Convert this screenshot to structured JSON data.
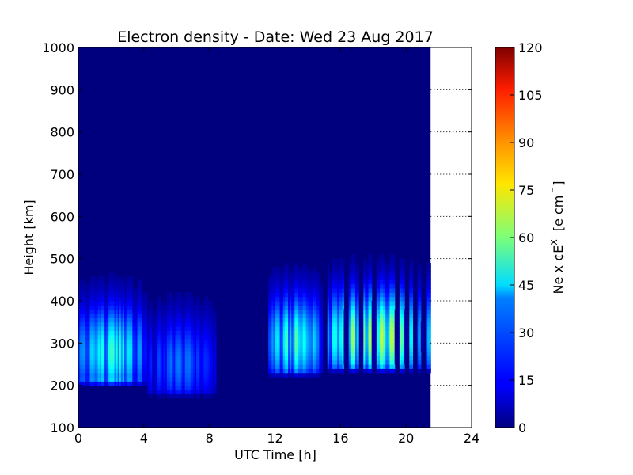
{
  "chart_data": {
    "type": "heatmap",
    "title": "Electron density - Date: Wed 23 Aug 2017",
    "xlabel": "UTC Time [h]",
    "ylabel": "Height [km]",
    "xlim": [
      0,
      24
    ],
    "ylim": [
      100,
      1000
    ],
    "x_ticks": [
      "0",
      "4",
      "8",
      "12",
      "16",
      "20",
      "24"
    ],
    "y_ticks": [
      "100",
      "200",
      "300",
      "400",
      "500",
      "600",
      "700",
      "800",
      "900",
      "1000"
    ],
    "data_end_hour": 21.5,
    "grid": "dotted horizontal lines in empty region",
    "colormap": "jet",
    "colorbar": {
      "label_main": "Ne x ¢E",
      "label_sup": "X",
      "label_unit": "[e cm",
      "label_unit_sup": "⁻",
      "label_close": "]",
      "range": [
        0,
        120
      ],
      "ticks": [
        "0",
        "15",
        "30",
        "45",
        "60",
        "75",
        "90",
        "105",
        "120"
      ]
    },
    "features": [
      {
        "x_start": 0,
        "x_end": 4.2,
        "peak_height_km": 275,
        "peak_value": 52
      },
      {
        "x_start": 4.2,
        "x_end": 8.3,
        "peak_height_km": 250,
        "peak_value": 30
      },
      {
        "x_start": 11.5,
        "x_end": 15,
        "peak_height_km": 300,
        "peak_value": 55
      },
      {
        "x_start": 15,
        "x_end": 21.5,
        "peak_height_km": 310,
        "peak_value": 70
      }
    ],
    "gaps_hours": [
      15.0,
      16.3,
      17.2,
      18.0,
      19.4,
      20.0,
      20.5,
      21.0
    ]
  }
}
